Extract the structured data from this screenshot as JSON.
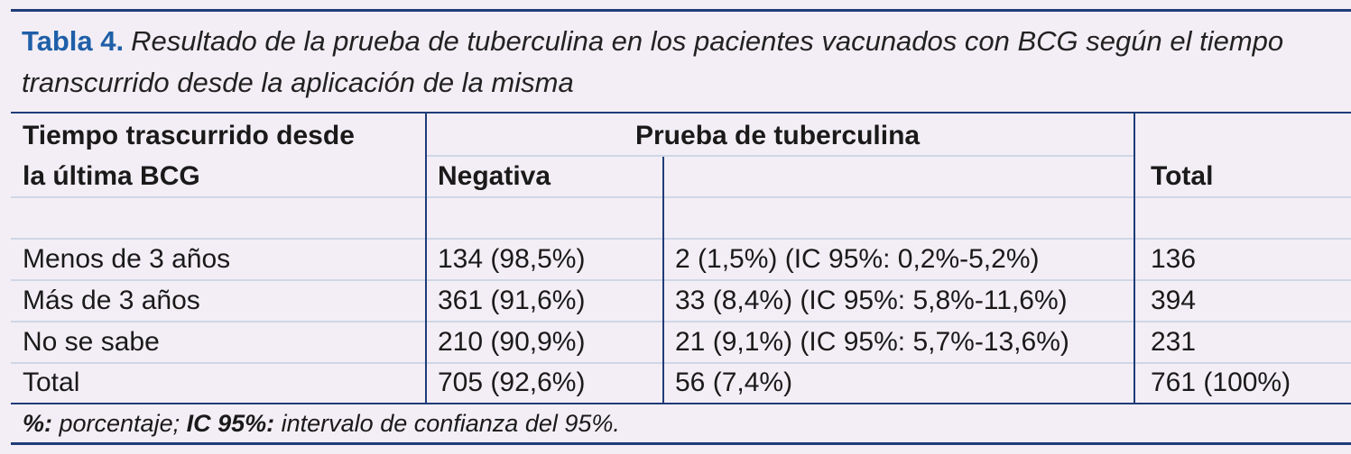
{
  "header": {
    "label": "Tabla 4.",
    "title_lines": [
      "Resultado de la prueba de tuberculina en los pacientes vacunados con BCG según el tiempo",
      "transcurrido desde la aplicación de la misma"
    ]
  },
  "table": {
    "columns": {
      "stub_lines": [
        "Tiempo trascurrido desde",
        "la última BCG"
      ],
      "group": "Prueba de tuberculina",
      "negative": "Negativa",
      "total": "Total"
    },
    "rows": [
      [
        "Menos de 3 años",
        "134 (98,5%)",
        "2 (1,5%) (IC 95%: 0,2%-5,2%)",
        "136"
      ],
      [
        "Más de 3 años",
        "361 (91,6%)",
        "33 (8,4%) (IC 95%: 5,8%-11,6%)",
        "394"
      ],
      [
        "No se sabe",
        "210 (90,9%)",
        "21 (9,1%) (IC 95%: 5,7%-13,6%)",
        "231"
      ],
      [
        "Total",
        "705 (92,6%)",
        "56 (7,4%)",
        "761 (100%)"
      ]
    ]
  },
  "footnote": [
    {
      "text": "%:",
      "bold": true
    },
    {
      "text": " porcentaje; ",
      "bold": false
    },
    {
      "text": "IC 95%:",
      "bold": true
    },
    {
      "text": " intervalo de confianza del 95%.",
      "bold": false
    }
  ]
}
